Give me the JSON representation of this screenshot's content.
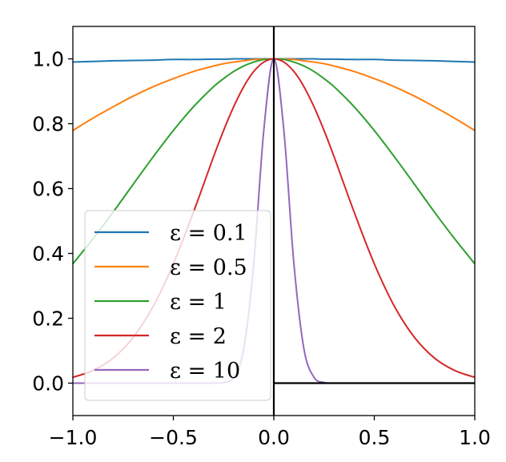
{
  "chart_data": {
    "type": "line",
    "title": "",
    "xlabel": "",
    "ylabel": "",
    "xlim": [
      -1.0,
      1.0
    ],
    "ylim": [
      -0.1,
      1.1
    ],
    "xticks": [
      -1.0,
      -0.5,
      0.0,
      0.5,
      1.0
    ],
    "xtick_labels": [
      "−1.0",
      "−0.5",
      "0.0",
      "0.5",
      "1.0"
    ],
    "yticks": [
      0.0,
      0.2,
      0.4,
      0.6,
      0.8,
      1.0
    ],
    "ytick_labels": [
      "0.0",
      "0.2",
      "0.4",
      "0.6",
      "0.8",
      "1.0"
    ],
    "grid": false,
    "legend_position": "lower-left",
    "reference_lines": [
      {
        "orientation": "vertical",
        "x": 0.0,
        "color": "#000000"
      },
      {
        "orientation": "horizontal",
        "y": 0.0,
        "x_from": 0.0,
        "x_to": 1.0,
        "color": "#000000"
      }
    ],
    "x": [
      -1.0,
      -0.9,
      -0.8,
      -0.7,
      -0.6,
      -0.5,
      -0.4,
      -0.3,
      -0.25,
      -0.2,
      -0.15,
      -0.1,
      -0.05,
      0.0,
      0.05,
      0.1,
      0.15,
      0.2,
      0.25,
      0.3,
      0.4,
      0.5,
      0.6,
      0.7,
      0.8,
      0.9,
      1.0
    ],
    "series": [
      {
        "name": "ε = 0.1",
        "color": "#1f77b4",
        "values": [
          0.99,
          0.992,
          0.994,
          0.995,
          0.996,
          0.998,
          0.998,
          0.999,
          0.999,
          1.0,
          1.0,
          1.0,
          1.0,
          1.0,
          1.0,
          1.0,
          1.0,
          1.0,
          0.999,
          0.999,
          0.998,
          0.998,
          0.996,
          0.995,
          0.994,
          0.992,
          0.99
        ]
      },
      {
        "name": "ε = 0.5",
        "color": "#ff7f0e",
        "values": [
          0.779,
          0.817,
          0.852,
          0.885,
          0.914,
          0.939,
          0.961,
          0.978,
          0.985,
          0.99,
          0.994,
          0.998,
          0.999,
          1.0,
          0.999,
          0.998,
          0.994,
          0.99,
          0.985,
          0.978,
          0.961,
          0.939,
          0.914,
          0.885,
          0.852,
          0.817,
          0.779
        ]
      },
      {
        "name": "ε = 1",
        "color": "#2ca02c",
        "values": [
          0.368,
          0.445,
          0.527,
          0.613,
          0.698,
          0.779,
          0.852,
          0.914,
          0.939,
          0.961,
          0.978,
          0.99,
          0.998,
          1.0,
          0.998,
          0.99,
          0.978,
          0.961,
          0.939,
          0.914,
          0.852,
          0.779,
          0.698,
          0.613,
          0.527,
          0.445,
          0.368
        ]
      },
      {
        "name": "ε = 2",
        "color": "#d62728",
        "values": [
          0.018,
          0.039,
          0.077,
          0.141,
          0.237,
          0.368,
          0.527,
          0.698,
          0.779,
          0.852,
          0.914,
          0.961,
          0.99,
          1.0,
          0.99,
          0.961,
          0.914,
          0.852,
          0.779,
          0.698,
          0.527,
          0.368,
          0.237,
          0.141,
          0.077,
          0.039,
          0.018
        ]
      },
      {
        "name": "ε = 10",
        "color": "#9467bd",
        "values": [
          0.0,
          0.0,
          0.0,
          0.0,
          0.0,
          0.0,
          0.0,
          0.0,
          0.002,
          0.018,
          0.105,
          0.368,
          0.779,
          1.0,
          0.779,
          0.368,
          0.105,
          0.018,
          0.002,
          0.0,
          0.0,
          0.0,
          0.0,
          0.0,
          0.0,
          0.0,
          0.0
        ]
      }
    ]
  }
}
